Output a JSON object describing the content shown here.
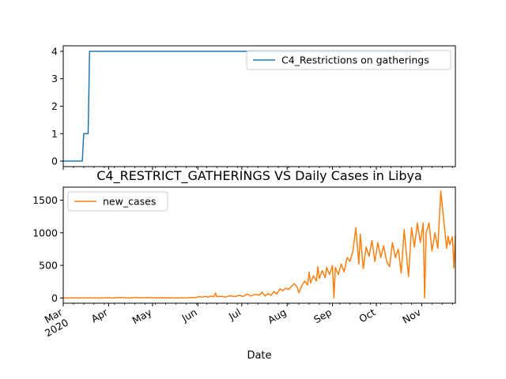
{
  "chart_data": [
    {
      "type": "line",
      "title": "",
      "xlabel": "",
      "ylabel": "",
      "ylim": [
        -0.2,
        4.2
      ],
      "yticks": [
        0,
        1,
        2,
        3,
        4
      ],
      "grid": false,
      "legend_placement": "upper right",
      "series": [
        {
          "name": "C4_Restrictions on gatherings",
          "color": "#1f77b4",
          "points": [
            [
              "2020-03-01",
              0
            ],
            [
              "2020-03-14",
              0
            ],
            [
              "2020-03-15",
              1
            ],
            [
              "2020-03-18",
              1
            ],
            [
              "2020-03-19",
              4
            ],
            [
              "2020-11-01",
              4
            ]
          ]
        }
      ]
    },
    {
      "type": "line",
      "title": "C4_RESTRICT_GATHERINGS VS Daily Cases in Libya",
      "xlabel": "Date",
      "ylabel": "",
      "ylim": [
        -80,
        1700
      ],
      "yticks": [
        0,
        500,
        1000,
        1500
      ],
      "xticks": [
        {
          "date": "2020-03-01",
          "label": "Mar\n2020"
        },
        {
          "date": "2020-04-01",
          "label": "Apr"
        },
        {
          "date": "2020-05-01",
          "label": "May"
        },
        {
          "date": "2020-06-01",
          "label": "Jun"
        },
        {
          "date": "2020-07-01",
          "label": "Jul"
        },
        {
          "date": "2020-08-01",
          "label": "Aug"
        },
        {
          "date": "2020-09-01",
          "label": "Sep"
        },
        {
          "date": "2020-10-01",
          "label": "Oct"
        },
        {
          "date": "2020-11-01",
          "label": "Nov"
        }
      ],
      "grid": false,
      "legend_placement": "upper left",
      "series": [
        {
          "name": "new_cases",
          "color": "#ff7f0e",
          "points": [
            [
              "2020-03-01",
              0
            ],
            [
              "2020-03-24",
              0
            ],
            [
              "2020-03-25",
              2
            ],
            [
              "2020-03-27",
              0
            ],
            [
              "2020-04-01",
              5
            ],
            [
              "2020-04-03",
              0
            ],
            [
              "2020-04-10",
              8
            ],
            [
              "2020-04-12",
              3
            ],
            [
              "2020-04-15",
              0
            ],
            [
              "2020-04-20",
              10
            ],
            [
              "2020-04-22",
              2
            ],
            [
              "2020-04-28",
              6
            ],
            [
              "2020-05-03",
              1
            ],
            [
              "2020-05-10",
              4
            ],
            [
              "2020-05-18",
              0
            ],
            [
              "2020-05-25",
              3
            ],
            [
              "2020-05-28",
              8
            ],
            [
              "2020-05-30",
              5
            ],
            [
              "2020-06-02",
              20
            ],
            [
              "2020-06-04",
              15
            ],
            [
              "2020-06-06",
              25
            ],
            [
              "2020-06-08",
              12
            ],
            [
              "2020-06-10",
              30
            ],
            [
              "2020-06-12",
              18
            ],
            [
              "2020-06-13",
              75
            ],
            [
              "2020-06-14",
              20
            ],
            [
              "2020-06-17",
              25
            ],
            [
              "2020-06-20",
              15
            ],
            [
              "2020-06-23",
              35
            ],
            [
              "2020-06-26",
              22
            ],
            [
              "2020-06-29",
              40
            ],
            [
              "2020-07-02",
              25
            ],
            [
              "2020-07-05",
              60
            ],
            [
              "2020-07-07",
              30
            ],
            [
              "2020-07-10",
              55
            ],
            [
              "2020-07-13",
              45
            ],
            [
              "2020-07-15",
              90
            ],
            [
              "2020-07-17",
              30
            ],
            [
              "2020-07-19",
              70
            ],
            [
              "2020-07-21",
              40
            ],
            [
              "2020-07-23",
              100
            ],
            [
              "2020-07-25",
              60
            ],
            [
              "2020-07-27",
              140
            ],
            [
              "2020-07-29",
              110
            ],
            [
              "2020-07-31",
              150
            ],
            [
              "2020-08-02",
              130
            ],
            [
              "2020-08-04",
              180
            ],
            [
              "2020-08-06",
              220
            ],
            [
              "2020-08-08",
              160
            ],
            [
              "2020-08-09",
              80
            ],
            [
              "2020-08-11",
              190
            ],
            [
              "2020-08-13",
              260
            ],
            [
              "2020-08-15",
              200
            ],
            [
              "2020-08-16",
              400
            ],
            [
              "2020-08-17",
              230
            ],
            [
              "2020-08-19",
              340
            ],
            [
              "2020-08-21",
              260
            ],
            [
              "2020-08-22",
              480
            ],
            [
              "2020-08-23",
              300
            ],
            [
              "2020-08-25",
              420
            ],
            [
              "2020-08-27",
              310
            ],
            [
              "2020-08-28",
              470
            ],
            [
              "2020-08-30",
              360
            ],
            [
              "2020-09-01",
              500
            ],
            [
              "2020-09-02",
              0
            ],
            [
              "2020-09-03",
              470
            ],
            [
              "2020-09-05",
              360
            ],
            [
              "2020-09-07",
              520
            ],
            [
              "2020-09-09",
              400
            ],
            [
              "2020-09-11",
              620
            ],
            [
              "2020-09-13",
              560
            ],
            [
              "2020-09-15",
              720
            ],
            [
              "2020-09-17",
              1080
            ],
            [
              "2020-09-19",
              520
            ],
            [
              "2020-09-20",
              980
            ],
            [
              "2020-09-22",
              450
            ],
            [
              "2020-09-24",
              780
            ],
            [
              "2020-09-26",
              640
            ],
            [
              "2020-09-28",
              880
            ],
            [
              "2020-09-30",
              560
            ],
            [
              "2020-10-02",
              850
            ],
            [
              "2020-10-04",
              620
            ],
            [
              "2020-10-06",
              800
            ],
            [
              "2020-10-08",
              560
            ],
            [
              "2020-10-10",
              480
            ],
            [
              "2020-10-12",
              850
            ],
            [
              "2020-10-14",
              620
            ],
            [
              "2020-10-16",
              750
            ],
            [
              "2020-10-18",
              380
            ],
            [
              "2020-10-20",
              1050
            ],
            [
              "2020-10-22",
              560
            ],
            [
              "2020-10-23",
              330
            ],
            [
              "2020-10-25",
              1080
            ],
            [
              "2020-10-27",
              780
            ],
            [
              "2020-10-29",
              1150
            ],
            [
              "2020-10-31",
              850
            ],
            [
              "2020-11-02",
              1150
            ],
            [
              "2020-11-03",
              0
            ],
            [
              "2020-11-04",
              1000
            ],
            [
              "2020-11-06",
              1150
            ],
            [
              "2020-11-08",
              720
            ],
            [
              "2020-11-10",
              1000
            ],
            [
              "2020-11-12",
              760
            ],
            [
              "2020-11-14",
              1640
            ],
            [
              "2020-11-16",
              1200
            ],
            [
              "2020-11-18",
              760
            ],
            [
              "2020-11-19",
              950
            ],
            [
              "2020-11-20",
              820
            ],
            [
              "2020-11-22",
              940
            ],
            [
              "2020-11-23",
              460
            ],
            [
              "2020-11-24",
              960
            ]
          ]
        }
      ]
    }
  ]
}
